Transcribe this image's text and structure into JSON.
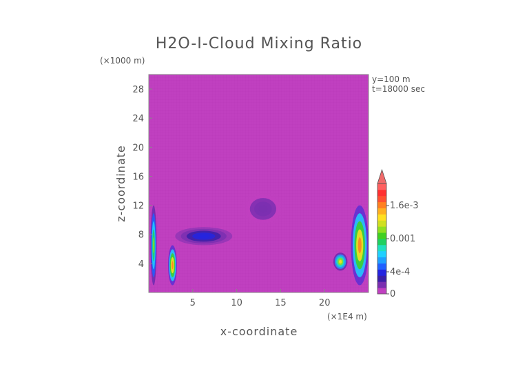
{
  "chart_data": {
    "type": "heatmap",
    "title": "H2O-I-Cloud Mixing Ratio",
    "xlabel": "x-coordinate",
    "ylabel": "z-coordinate",
    "x_unit": "(×1E4 m)",
    "y_unit": "(×1000 m)",
    "xlim": [
      0,
      25
    ],
    "ylim": [
      0,
      30
    ],
    "x_ticks": [
      5,
      10,
      15,
      20
    ],
    "y_ticks": [
      4,
      8,
      12,
      16,
      20,
      24,
      28
    ],
    "annotations": [
      "y=100 m",
      "t=18000 sec"
    ],
    "background_value": 0,
    "colorbar": {
      "range": [
        0,
        0.002
      ],
      "tick_values": [
        0,
        0.0004,
        0.001,
        0.0016
      ],
      "tick_labels": [
        "0",
        "4e-4",
        "0.001",
        "1.6e-3"
      ],
      "colors": [
        "#c040c0",
        "#7a2fb0",
        "#3a1fa8",
        "#2424e0",
        "#2060ff",
        "#1fa0ff",
        "#20d0ff",
        "#20e0c0",
        "#20d060",
        "#40d020",
        "#90e020",
        "#d0e020",
        "#ffe020",
        "#ffb020",
        "#ff8020",
        "#ff5030",
        "#ff3030",
        "#ff6060"
      ],
      "extend": "max"
    },
    "features": [
      {
        "name": "left-edge cloud column",
        "x": [
          0.2,
          0.9
        ],
        "z": [
          1,
          12
        ],
        "max_value": 0.0012
      },
      {
        "name": "left cloud cell",
        "x": [
          2.2,
          3.2
        ],
        "z": [
          1,
          6.5
        ],
        "max_value": 0.0017
      },
      {
        "name": "mid-level cloud band",
        "x": [
          3,
          9.5
        ],
        "z": [
          6.5,
          9
        ],
        "max_value": 0.0004
      },
      {
        "name": "upper thin cloud",
        "x": [
          10.5,
          15.5
        ],
        "z": [
          9,
          14
        ],
        "max_value": 0.0001
      },
      {
        "name": "right cloud cell",
        "x": [
          21,
          22.6
        ],
        "z": [
          3,
          5.5
        ],
        "max_value": 0.0014
      },
      {
        "name": "right-edge cloud column",
        "x": [
          23,
          25
        ],
        "z": [
          1,
          12
        ],
        "max_value": 0.0017
      }
    ]
  }
}
